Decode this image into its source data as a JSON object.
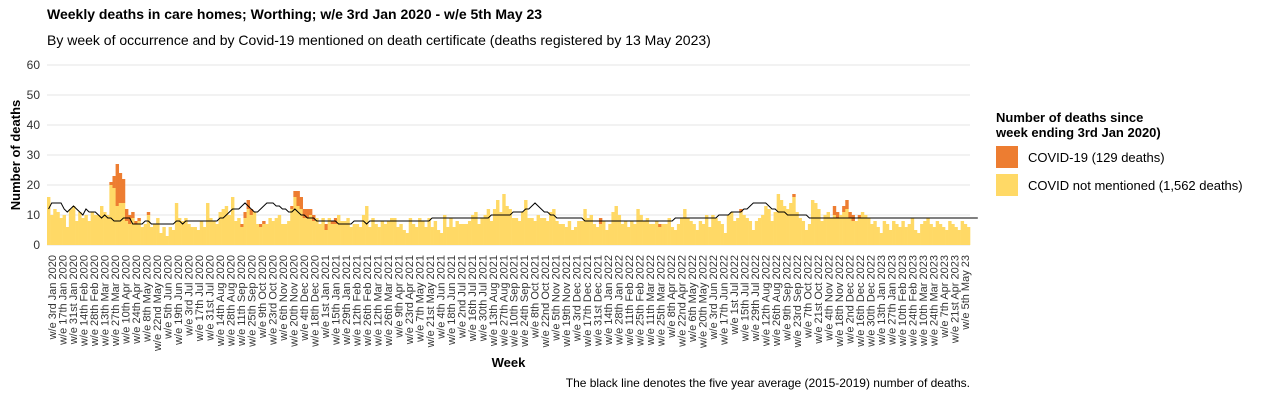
{
  "title": "Weekly deaths in care homes; Worthing; w/e 3rd Jan 2020 - w/e 5th May 23",
  "subtitle": "By week of occurrence and by Covid-19 mentioned on death certificate (deaths registered by 13 May 2023)",
  "caption": "The black line denotes the five year average (2015-2019) number of deaths.",
  "legend": {
    "title_line1": "Number of deaths since",
    "title_line2": "week ending 3rd Jan 2020)",
    "items": [
      {
        "label": "COVID-19 (129 deaths)",
        "color": "#ed7d31"
      },
      {
        "label": "COVID not mentioned (1,562 deaths)",
        "color": "#ffd966"
      }
    ]
  },
  "chart_data": {
    "type": "bar",
    "stacked": true,
    "xlabel": "Week",
    "ylabel": "Number of deaths",
    "ylim": [
      0,
      60
    ],
    "yticks": [
      0,
      10,
      20,
      30,
      40,
      50,
      60
    ],
    "grid": true,
    "legend_position": "right",
    "colors": {
      "covid": "#ed7d31",
      "non_covid": "#ffd966",
      "average": "#000000"
    },
    "x_start_label": "w/e 3rd Jan 2020",
    "x_end_label": "w/e 5th May 23",
    "series": [
      {
        "name": "COVID-19",
        "values": [
          0,
          0,
          0,
          0,
          0,
          0,
          0,
          0,
          0,
          0,
          0,
          0,
          0,
          0,
          0,
          0,
          0,
          0,
          0,
          0,
          1,
          4,
          14,
          10,
          8,
          4,
          3,
          2,
          1,
          1,
          0,
          0,
          1,
          0,
          0,
          0,
          0,
          0,
          0,
          0,
          0,
          0,
          0,
          0,
          0,
          0,
          0,
          0,
          0,
          0,
          0,
          0,
          0,
          0,
          0,
          0,
          0,
          0,
          0,
          0,
          0,
          0,
          1,
          2,
          3,
          2,
          0,
          0,
          1,
          1,
          0,
          0,
          0,
          0,
          0,
          0,
          0,
          0,
          1,
          2,
          5,
          4,
          3,
          3,
          2,
          2,
          0,
          0,
          0,
          2,
          0,
          1,
          2,
          0,
          0,
          0,
          0,
          0,
          0,
          0,
          0,
          0,
          0,
          0,
          0,
          0,
          0,
          0,
          0,
          0,
          0,
          0,
          0,
          0,
          0,
          0,
          0,
          0,
          0,
          0,
          0,
          0,
          0,
          0,
          0,
          0,
          0,
          0,
          0,
          0,
          0,
          0,
          0,
          0,
          0,
          0,
          0,
          0,
          0,
          0,
          0,
          0,
          0,
          0,
          0,
          0,
          0,
          0,
          0,
          0,
          0,
          0,
          0,
          0,
          0,
          0,
          0,
          0,
          0,
          0,
          0,
          0,
          0,
          0,
          0,
          0,
          0,
          0,
          0,
          0,
          0,
          0,
          0,
          0,
          0,
          0,
          0,
          2,
          0,
          0,
          0,
          0,
          0,
          0,
          0,
          0,
          0,
          0,
          0,
          0,
          0,
          0,
          0,
          0,
          0,
          0,
          1,
          0,
          0,
          0,
          0,
          0,
          0,
          0,
          0,
          0,
          0,
          0,
          0,
          0,
          0,
          0,
          0,
          0,
          0,
          0,
          0,
          0,
          0,
          0,
          0,
          0,
          1,
          0,
          0,
          0,
          0,
          0,
          0,
          0,
          0,
          0,
          0,
          0,
          0,
          0,
          0,
          0,
          0,
          1,
          0,
          0,
          0,
          0,
          0,
          0,
          0,
          0,
          0,
          0,
          0,
          0,
          3,
          2,
          0,
          2,
          3,
          2,
          2,
          0,
          1,
          0,
          0,
          0,
          0,
          0,
          0,
          0,
          0,
          0,
          0,
          0,
          0,
          0,
          0,
          0,
          0,
          0,
          0,
          0,
          0,
          0,
          0,
          0,
          0,
          0,
          0,
          0,
          0,
          0,
          0,
          0,
          0
        ]
      },
      {
        "name": "COVID not mentioned",
        "values": [
          16,
          10,
          12,
          11,
          9,
          10,
          6,
          12,
          13,
          8,
          11,
          9,
          10,
          8,
          11,
          10,
          10,
          13,
          11,
          10,
          20,
          19,
          13,
          14,
          14,
          8,
          7,
          9,
          7,
          8,
          6,
          7,
          10,
          6,
          7,
          9,
          4,
          6,
          3,
          6,
          5,
          14,
          9,
          8,
          9,
          7,
          6,
          6,
          5,
          8,
          6,
          14,
          9,
          8,
          7,
          11,
          12,
          13,
          10,
          16,
          8,
          9,
          6,
          9,
          12,
          10,
          11,
          7,
          6,
          7,
          7,
          9,
          8,
          9,
          10,
          7,
          7,
          8,
          12,
          16,
          13,
          12,
          9,
          9,
          10,
          8,
          9,
          7,
          9,
          5,
          9,
          7,
          7,
          10,
          8,
          8,
          9,
          6,
          7,
          7,
          6,
          10,
          13,
          6,
          9,
          7,
          6,
          8,
          7,
          8,
          9,
          9,
          6,
          7,
          5,
          4,
          9,
          7,
          6,
          9,
          8,
          6,
          9,
          6,
          8,
          5,
          4,
          10,
          6,
          9,
          6,
          8,
          7,
          7,
          7,
          8,
          10,
          11,
          7,
          9,
          10,
          12,
          8,
          12,
          15,
          11,
          17,
          13,
          12,
          9,
          9,
          8,
          11,
          15,
          9,
          9,
          8,
          10,
          9,
          9,
          8,
          11,
          12,
          8,
          7,
          7,
          6,
          8,
          5,
          6,
          8,
          8,
          12,
          9,
          10,
          7,
          6,
          7,
          8,
          5,
          7,
          11,
          13,
          10,
          7,
          8,
          6,
          8,
          7,
          12,
          10,
          8,
          9,
          7,
          7,
          8,
          6,
          7,
          7,
          9,
          6,
          5,
          7,
          9,
          12,
          9,
          8,
          7,
          5,
          8,
          7,
          10,
          6,
          10,
          9,
          8,
          7,
          4,
          10,
          11,
          8,
          9,
          11,
          10,
          9,
          8,
          5,
          8,
          9,
          10,
          13,
          12,
          8,
          11,
          17,
          15,
          13,
          12,
          14,
          16,
          11,
          9,
          8,
          5,
          7,
          15,
          14,
          12,
          8,
          10,
          11,
          9,
          10,
          9,
          10,
          11,
          12,
          9,
          8,
          8,
          9,
          11,
          10,
          9,
          7,
          8,
          6,
          4,
          8,
          7,
          5,
          8,
          7,
          6,
          8,
          6,
          7,
          9,
          5,
          4,
          7,
          8,
          9,
          7,
          6,
          8,
          7,
          6,
          5,
          8,
          7,
          6,
          5,
          8,
          7,
          6
        ]
      },
      {
        "name": "Five year average",
        "type": "line",
        "values": [
          12,
          14,
          14,
          14,
          14,
          12,
          11,
          12,
          13,
          12,
          11,
          10,
          12,
          11,
          11,
          11,
          10,
          9,
          10,
          9,
          9,
          8,
          8,
          8,
          9,
          9,
          9,
          7,
          7,
          7,
          7,
          8,
          8,
          7,
          7,
          7,
          7,
          7,
          7,
          7,
          7,
          8,
          8,
          7,
          8,
          8,
          8,
          8,
          8,
          8,
          8,
          8,
          8,
          8,
          8,
          9,
          9,
          10,
          11,
          12,
          12,
          12,
          13,
          14,
          13,
          12,
          11,
          11,
          12,
          13,
          14,
          14,
          14,
          13,
          13,
          12,
          12,
          11,
          11,
          12,
          11,
          10,
          10,
          9,
          9,
          9,
          8,
          8,
          8,
          8,
          8,
          8,
          8,
          7,
          7,
          7,
          7,
          7,
          8,
          8,
          8,
          8,
          7,
          8,
          8,
          8,
          8,
          8,
          8,
          8,
          8,
          8,
          8,
          8,
          8,
          8,
          8,
          8,
          8,
          8,
          8,
          8,
          8,
          9,
          9,
          9,
          9,
          9,
          9,
          9,
          9,
          9,
          9,
          9,
          9,
          9,
          9,
          9,
          9,
          9,
          9,
          9,
          10,
          10,
          10,
          10,
          10,
          10,
          10,
          11,
          11,
          11,
          11,
          12,
          12,
          13,
          14,
          13,
          12,
          11,
          11,
          10,
          10,
          9,
          9,
          9,
          9,
          9,
          9,
          9,
          9,
          9,
          8,
          8,
          8,
          8,
          8,
          8,
          8,
          8,
          8,
          8,
          8,
          8,
          8,
          8,
          8,
          8,
          8,
          8,
          8,
          8,
          8,
          8,
          8,
          8,
          8,
          8,
          8,
          8,
          8,
          9,
          9,
          9,
          9,
          9,
          9,
          9,
          9,
          9,
          9,
          9,
          9,
          9,
          9,
          10,
          10,
          10,
          10,
          11,
          11,
          11,
          11,
          12,
          12,
          13,
          14,
          14,
          14,
          14,
          14,
          13,
          12,
          12,
          11,
          11,
          11,
          10,
          10,
          10,
          10,
          10,
          10,
          10,
          9,
          9,
          9,
          9,
          9,
          9,
          9,
          9,
          9,
          9,
          9,
          9,
          9,
          9,
          9,
          9,
          9,
          9,
          9,
          9,
          9,
          9,
          9,
          9,
          9,
          9,
          9,
          9,
          9,
          9,
          9,
          9,
          9,
          9,
          9,
          9,
          9,
          9,
          9,
          9,
          9,
          9,
          9,
          9,
          9,
          9,
          9,
          9,
          9,
          9,
          9,
          9,
          9,
          9,
          9
        ]
      }
    ],
    "tick_labels": [
      "w/e 3rd Jan 2020",
      "w/e 17th Jan 2020",
      "w/e 31st Jan 2020",
      "w/e 14th Feb 2020",
      "w/e 28th Feb 2020",
      "w/e 13th Mar 2020",
      "w/e 27th Mar 2020",
      "w/e 10th Apr 2020",
      "w/e 24th Apr 2020",
      "w/e 8th May 2020",
      "w/e 22nd May 2020",
      "w/e 5th Jun 2020",
      "w/e 19th Jun 2020",
      "w/e 3rd Jul 2020",
      "w/e 17th Jul 2020",
      "w/e 31st Jul 2020",
      "w/e 14th Aug 2020",
      "w/e 28th Aug 2020",
      "w/e 11th Sep 2020",
      "w/e 25th Sep 2020",
      "w/e 9th Oct 2020",
      "w/e 23rd Oct 2020",
      "w/e 6th Nov 2020",
      "w/e 20th Nov 2020",
      "w/e 4th Dec 2020",
      "w/e 18th Dec 2020",
      "w/e 1st Jan 2021",
      "w/e 15th Jan 2021",
      "w/e 29th Jan 2021",
      "w/e 12th Feb 2021",
      "w/e 26th Feb 2021",
      "w/e 12th Mar 2021",
      "w/e 26th Mar 2021",
      "w/e 9th Apr 2021",
      "w/e 23rd Apr 2021",
      "w/e 7th May 2021",
      "w/e 21st May 2021",
      "w/e 4th Jun 2021",
      "w/e 18th Jun 2021",
      "w/e 2nd Jul 2021",
      "w/e 16th Jul 2021",
      "w/e 30th Jul 2021",
      "w/e 13th Aug 2021",
      "w/e 27th Aug 2021",
      "w/e 10th Sep 2021",
      "w/e 24th Sep 2021",
      "w/e 8th Oct 2021",
      "w/e 22nd Oct 2021",
      "w/e 5th Nov 2021",
      "w/e 19th Nov 2021",
      "w/e 3rd Dec 2021",
      "w/e 17th Dec 2021",
      "w/e 31st Dec 2021",
      "w/e 14th Jan 2022",
      "w/e 28th Jan 2022",
      "w/e 11th Feb 2022",
      "w/e 25th Feb 2022",
      "w/e 11th Mar 2022",
      "w/e 25th Mar 2022",
      "w/e 8th Apr 2022",
      "w/e 22nd Apr 2022",
      "w/e 6th May 2022",
      "w/e 20th May 2022",
      "w/e 3rd Jun 2022",
      "w/e 17th Jun 2022",
      "w/e 1st Jul 2022",
      "w/e 15th Jul 2022",
      "w/e 29th Jul 2022",
      "w/e 12th Aug 2022",
      "w/e 26th Aug 2022",
      "w/e 9th Sep 2022",
      "w/e 23rd Sep 2022",
      "w/e 7th Oct 2022",
      "w/e 21st Oct 2022",
      "w/e 4th Nov 2022",
      "w/e 18th Nov 2022",
      "w/e 2nd Dec 2022",
      "w/e 16th Dec 2022",
      "w/e 30th Dec 2022",
      "w/e 13th Jan 2023",
      "w/e 27th Jan 2023",
      "w/e 10th Feb 2023",
      "w/e 24th Feb 2023",
      "w/e 10th Mar 2023",
      "w/e 24th Mar 2023",
      "w/e 7th Apr 2023",
      "w/e 21st Apr 2023",
      "w/e 5th May 23"
    ]
  }
}
